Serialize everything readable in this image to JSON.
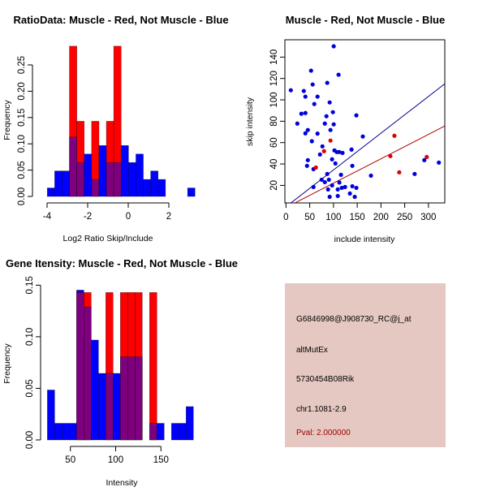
{
  "colors": {
    "muscle": "#ff0000",
    "not_muscle": "#0000ff",
    "overlap": "#7f007f",
    "muscle_line": "#b00000",
    "not_muscle_line": "#00008b",
    "info_bg": "#e5c8c1",
    "pval_text": "#a00000"
  },
  "chart_data": [
    {
      "id": "ratio-histogram",
      "type": "bar",
      "title": "RatioData: Muscle - Red, Not Muscle - Blue",
      "xlabel": "Log2 Ratio Skip/Include",
      "ylabel": "Frequency",
      "bin_start": -3.99,
      "bin_width": 0.364,
      "xlim": [
        -4,
        3.3
      ],
      "ylim": [
        0,
        0.2857
      ],
      "xticks": [
        -4,
        -2,
        0,
        2
      ],
      "xtick_labels": [
        "-4",
        "-2",
        "0",
        "2"
      ],
      "yticks": [
        0,
        0.05,
        0.1,
        0.15,
        0.2,
        0.25
      ],
      "ytick_labels": [
        "0.00",
        "0.05",
        "0.10",
        "0.15",
        "0.20",
        "0.25"
      ],
      "series": [
        {
          "name": "Not Muscle",
          "color": "blue",
          "values": [
            0.0161,
            0.0484,
            0.0484,
            0.1129,
            0.0645,
            0.0806,
            0.0323,
            0.0968,
            0.0645,
            0.0645,
            0.0968,
            0.0645,
            0.0806,
            0.0323,
            0.0484,
            0.0323,
            0,
            0,
            0,
            0.0161
          ]
        },
        {
          "name": "Muscle",
          "color": "red",
          "values": [
            0,
            0,
            0,
            0.2857,
            0.1429,
            0,
            0.1429,
            0,
            0.1429,
            0.2857,
            0,
            0,
            0,
            0,
            0,
            0,
            0,
            0,
            0,
            0
          ]
        }
      ]
    },
    {
      "id": "intensity-scatter",
      "type": "scatter",
      "title": "Muscle - Red, Not Muscle - Blue",
      "xlabel": "include intensity",
      "ylabel": "skip intensity",
      "xlim": [
        -2.3,
        334.4
      ],
      "ylim": [
        3.6,
        156.2
      ],
      "xticks": [
        0,
        50,
        100,
        150,
        200,
        250,
        300
      ],
      "xtick_labels": [
        "0",
        "50",
        "100",
        "150",
        "200",
        "250",
        "300"
      ],
      "yticks": [
        20,
        40,
        60,
        80,
        100,
        120,
        140
      ],
      "ytick_labels": [
        "20",
        "40",
        "60",
        "80",
        "100",
        "120",
        "140"
      ],
      "series": [
        {
          "name": "Not Muscle",
          "color": "blue",
          "points": [
            [
              100.5,
              150.1
            ],
            [
              52.8,
              127.3
            ],
            [
              110.7,
              123.5
            ],
            [
              56.2,
              114.4
            ],
            [
              86.9,
              115.9
            ],
            [
              10.2,
              109.0
            ],
            [
              37.5,
              108.3
            ],
            [
              40.9,
              103.0
            ],
            [
              66.4,
              103.0
            ],
            [
              92.0,
              97.6
            ],
            [
              59.6,
              96.1
            ],
            [
              32.4,
              87.0
            ],
            [
              40.9,
              87.7
            ],
            [
              98.8,
              88.5
            ],
            [
              85.2,
              84.7
            ],
            [
              23.9,
              77.8
            ],
            [
              81.8,
              77.8
            ],
            [
              100.5,
              77.1
            ],
            [
              46.0,
              71.8
            ],
            [
              40.9,
              68.7
            ],
            [
              66.4,
              68.4
            ],
            [
              93.7,
              71.8
            ],
            [
              54.5,
              61.3
            ],
            [
              76.7,
              56.5
            ],
            [
              71.6,
              48.9
            ],
            [
              102.0,
              52.7
            ],
            [
              107.0,
              51.2
            ],
            [
              112.0,
              51.2
            ],
            [
              119.0,
              50.4
            ],
            [
              138.0,
              53.5
            ],
            [
              46.0,
              43.6
            ],
            [
              97.0,
              44.4
            ],
            [
              44.3,
              38.3
            ],
            [
              57.9,
              35.2
            ],
            [
              104.0,
              40.5
            ],
            [
              139.7,
              38.3
            ],
            [
              86.9,
              30.7
            ],
            [
              115.8,
              29.9
            ],
            [
              75.0,
              25.3
            ],
            [
              81.8,
              23.0
            ],
            [
              90.3,
              25.3
            ],
            [
              112.4,
              22.7
            ],
            [
              57.9,
              18.5
            ],
            [
              88.6,
              16.2
            ],
            [
              97.1,
              20.0
            ],
            [
              117.5,
              17.7
            ],
            [
              124.4,
              18.5
            ],
            [
              109.0,
              16.2
            ],
            [
              92.0,
              9.3
            ],
            [
              109.0,
              10.1
            ],
            [
              134.6,
              12.4
            ],
            [
              144.8,
              9.3
            ],
            [
              139.7,
              19.2
            ],
            [
              148.2,
              17.7
            ],
            [
              148.2,
              85.5
            ],
            [
              161.8,
              65.7
            ],
            [
              291.3,
              43.6
            ],
            [
              321.9,
              41.3
            ],
            [
              270.9,
              30.7
            ],
            [
              178.9,
              29.1
            ]
          ]
        },
        {
          "name": "Muscle",
          "color": "red",
          "points": [
            [
              93.7,
              61.9
            ],
            [
              80.1,
              52.0
            ],
            [
              63.0,
              36.7
            ],
            [
              228.3,
              66.4
            ],
            [
              219.8,
              47.4
            ],
            [
              238.5,
              32.2
            ],
            [
              296.4,
              46.6
            ]
          ]
        }
      ],
      "lines": [
        {
          "name": "Not Muscle fit",
          "color": "blue",
          "intercept": 0.0,
          "slope": 0.344
        },
        {
          "name": "Muscle fit",
          "color": "red",
          "intercept": -0.7,
          "slope": 0.228
        }
      ]
    },
    {
      "id": "gene-intensity-histogram",
      "type": "bar",
      "title": "Gene Itensity: Muscle - Red, Not Muscle - Blue",
      "xlabel": "Intensity",
      "ylabel": "Frequency",
      "bin_start": 24.6,
      "bin_width": 8.06,
      "xlim": [
        24.6,
        190
      ],
      "ylim": [
        0,
        0.15
      ],
      "xticks": [
        50,
        100,
        150
      ],
      "xtick_labels": [
        "50",
        "100",
        "150"
      ],
      "yticks": [
        0,
        0.05,
        0.1,
        0.15
      ],
      "ytick_labels": [
        "0.00",
        "0.05",
        "0.10",
        "0.15"
      ],
      "series": [
        {
          "name": "Not Muscle",
          "color": "blue",
          "values": [
            0.0484,
            0.0161,
            0.0161,
            0.0161,
            0.1452,
            0.129,
            0.0968,
            0.0645,
            0.0645,
            0.0645,
            0.0806,
            0.0806,
            0.0806,
            0,
            0.0161,
            0.0161,
            0,
            0.0161,
            0.0161,
            0.0323
          ]
        },
        {
          "name": "Muscle",
          "color": "red",
          "values": [
            0,
            0,
            0,
            0,
            0.1429,
            0.1429,
            0,
            0,
            0.1429,
            0,
            0.1429,
            0.1429,
            0.1429,
            0,
            0.1429,
            0,
            0,
            0,
            0,
            0
          ]
        }
      ]
    }
  ],
  "info_panel": {
    "probe_id": "G6846998@J908730_RC@j_at",
    "event_type": "altMutEx",
    "gene_name": "5730454B08Rik",
    "location": "chr1.1081-2.9",
    "pval": "Pval: 2.000000"
  }
}
